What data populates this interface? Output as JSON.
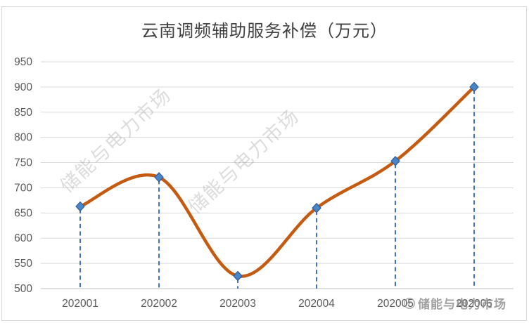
{
  "watermark": {
    "text": "储能与电力市场",
    "logo_icon": "swirl-logo-icon"
  },
  "chart_data": {
    "type": "line",
    "title": "云南调频辅助服务补偿（万元）",
    "categories": [
      "202001",
      "202002",
      "202003",
      "202004",
      "202005",
      "202006"
    ],
    "values": [
      663,
      721,
      525,
      660,
      753,
      900
    ],
    "xlabel": "",
    "ylabel": "",
    "ylim": [
      500,
      950
    ],
    "yticks": [
      500,
      550,
      600,
      650,
      700,
      750,
      800,
      850,
      900,
      950
    ],
    "grid": true,
    "legend": false,
    "smooth": true,
    "line_color": "#C55A11",
    "marker_shape": "diamond",
    "marker_fill": "#4A85C6",
    "marker_stroke": "#2E5C9E",
    "dropline_color": "#4472C4",
    "gridline_color": "#D9D9D9",
    "axis_line_color": "#BFBFBF",
    "tick_label_color": "#595959"
  }
}
